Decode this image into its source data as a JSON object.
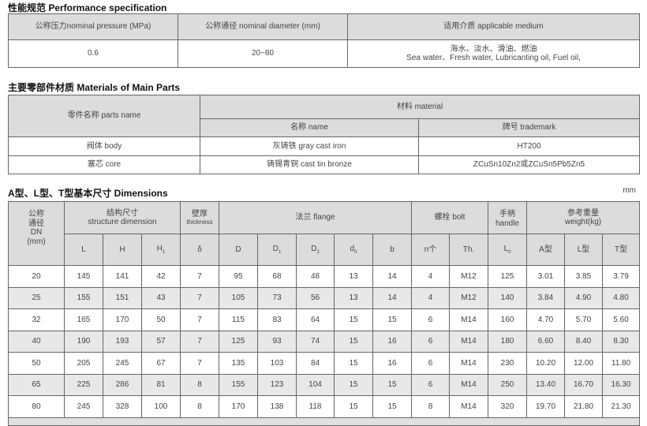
{
  "performance": {
    "title": "性能规范 Performance specification",
    "headers": [
      "公称压力nominal pressure (MPa)",
      "公称通径 nominal diameter (mm)",
      "适用介质 applicable medium"
    ],
    "pressure": "0.6",
    "diameter": "20~80",
    "medium_cn": "海水、淡水、滑油、燃油",
    "medium_en": "Sea water、Fresh water, Lubricanting oil, Fuel oil,"
  },
  "materials": {
    "title": "主要零部件材质 Materials of Main Parts",
    "parts_header": "零件名称 parts name",
    "material_header": "材料 material",
    "name_header": "名称 name",
    "trademark_header": "牌号 trademark",
    "rows": [
      {
        "part": "阀体 body",
        "name": "灰铸铁 gray cast iron",
        "trademark": "HT200"
      },
      {
        "part": "塞芯 core",
        "name": "铸锡青铜 cast tin bronze",
        "trademark": "ZCuSn10Zn2或ZCuSn5Pb5Zn5"
      }
    ]
  },
  "dimensions": {
    "title": "A型、L型、T型基本尺寸  Dimensions",
    "unit": "mm",
    "groups": {
      "dn_cn": "公称通径",
      "dn": "DN",
      "dn_unit": "(mm)",
      "structure_cn": "结构尺寸",
      "structure_en": "structure dimension",
      "thickness_cn": "壁厚",
      "thickness_en": "thickness",
      "flange": "法兰 flange",
      "bolt": "螺栓 bolt",
      "handle_cn": "手柄",
      "handle_en": "handle",
      "weight_cn": "参考重量",
      "weight_en": "weight(kg)"
    },
    "subheaders": {
      "L": "L",
      "H": "H",
      "H1": "H",
      "H1_sub": "1",
      "delta": "δ",
      "D": "D",
      "D1": "D",
      "D1_sub": "1",
      "D2": "D",
      "D2_sub": "2",
      "d0": "d",
      "d0_sub": "0",
      "b": "b",
      "n": "n个",
      "Th": "Th.",
      "L0": "L",
      "L0_sub": "0",
      "A": "A型",
      "Ltype": "L型",
      "T": "T型"
    },
    "rows": [
      [
        "20",
        "145",
        "141",
        "42",
        "7",
        "95",
        "68",
        "48",
        "13",
        "14",
        "4",
        "M12",
        "125",
        "3.01",
        "3.85",
        "3.79"
      ],
      [
        "25",
        "155",
        "151",
        "43",
        "7",
        "105",
        "73",
        "56",
        "13",
        "14",
        "4",
        "M12",
        "140",
        "3.84",
        "4.90",
        "4.80"
      ],
      [
        "32",
        "165",
        "170",
        "50",
        "7",
        "115",
        "83",
        "64",
        "15",
        "15",
        "6",
        "M14",
        "160",
        "4.70",
        "5.70",
        "5.60"
      ],
      [
        "40",
        "190",
        "193",
        "57",
        "7",
        "125",
        "93",
        "74",
        "15",
        "16",
        "6",
        "M14",
        "180",
        "6.60",
        "8.40",
        "8.30"
      ],
      [
        "50",
        "205",
        "245",
        "67",
        "7",
        "135",
        "103",
        "84",
        "15",
        "16",
        "6",
        "M14",
        "230",
        "10.20",
        "12.00",
        "11.80"
      ],
      [
        "65",
        "225",
        "286",
        "81",
        "8",
        "155",
        "123",
        "104",
        "15",
        "15",
        "6",
        "M14",
        "250",
        "13.40",
        "16.70",
        "16.30"
      ],
      [
        "80",
        "245",
        "328",
        "100",
        "8",
        "170",
        "138",
        "118",
        "15",
        "15",
        "8",
        "M14",
        "320",
        "19.70",
        "21.80",
        "21.30"
      ]
    ]
  }
}
